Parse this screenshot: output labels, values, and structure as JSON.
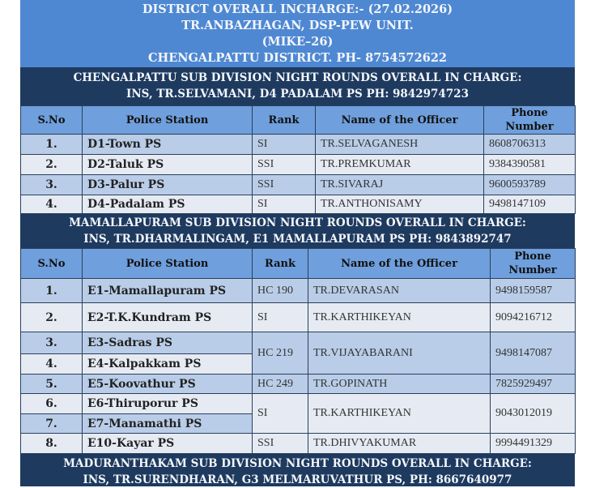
{
  "header": {
    "line1": "DISTRICT OVERALL INCHARGE:- (27.02.2026)",
    "line2": "TR.ANBAZHAGAN, DSP-PEW UNIT.",
    "line3": "(MIKE–26)",
    "line4": "CHENGALPATTU DISTRICT. PH- 8754572622"
  },
  "columns": {
    "sno": "S.No",
    "station": "Police Station",
    "rank": "Rank",
    "name": "Name of the Officer",
    "phone": "Phone Number"
  },
  "sections": [
    {
      "title1": "CHENGALPATTU SUB DIVISION NIGHT ROUNDS OVERALL IN CHARGE:",
      "title2": "INS, TR.SELVAMANI, D4 PADALAM PS PH: 9842974723",
      "rows": [
        {
          "sno": "1.",
          "station": "D1-Town PS",
          "rank": "SI",
          "name": "TR.SELVAGANESH",
          "phone": "8608706313"
        },
        {
          "sno": "2.",
          "station": "D2-Taluk PS",
          "rank": "SSI",
          "name": "TR.PREMKUMAR",
          "phone": "9384390581"
        },
        {
          "sno": "3.",
          "station": "D3-Palur PS",
          "rank": "SSI",
          "name": "TR.SIVARAJ",
          "phone": "9600593789"
        },
        {
          "sno": "4.",
          "station": "D4-Padalam PS",
          "rank": "SI",
          "name": "TR.ANTHONISAMY",
          "phone": "9498147109"
        }
      ]
    },
    {
      "title1": "MAMALLAPURAM SUB DIVISION NIGHT ROUNDS OVERALL IN CHARGE:",
      "title2": "INS, TR.DHARMALINGAM, E1 MAMALLAPURAM PS PH: 9843892747",
      "rows": [
        {
          "sno": "1.",
          "station": "E1-Mamallapuram PS",
          "rank": "HC 190",
          "name": "TR.DEVARASAN",
          "phone": "9498159587"
        },
        {
          "sno": "2.",
          "station": "E2-T.K.Kundram PS",
          "rank": "SI",
          "name": "TR.KARTHIKEYAN",
          "phone": "9094216712"
        },
        {
          "sno": "3.",
          "station": "E3-Sadras PS",
          "rank": "HC 219",
          "name": "TR.VIJAYABARANI",
          "phone": "9498147087"
        },
        {
          "sno": "4.",
          "station": "E4-Kalpakkam PS"
        },
        {
          "sno": "5.",
          "station": "E5-Koovathur PS",
          "rank": "HC 249",
          "name": "TR.GOPINATH",
          "phone": "7825929497"
        },
        {
          "sno": "6.",
          "station": "E6-Thiruporur PS",
          "rank": "SI",
          "name": "TR.KARTHIKEYAN",
          "phone": "9043012019"
        },
        {
          "sno": "7.",
          "station": "E7-Manamathi PS"
        },
        {
          "sno": "8.",
          "station": "E10-Kayar PS",
          "rank": "SSI",
          "name": "TR.DHIVYAKUMAR",
          "phone": "9994491329"
        }
      ]
    },
    {
      "title1": "MADURANTHAKAM SUB DIVISION NIGHT ROUNDS OVERALL IN CHARGE:",
      "title2": "INS, TR.SURENDHARAN, G3 MELMARUVATHUR PS, PH: 8667640977"
    }
  ]
}
